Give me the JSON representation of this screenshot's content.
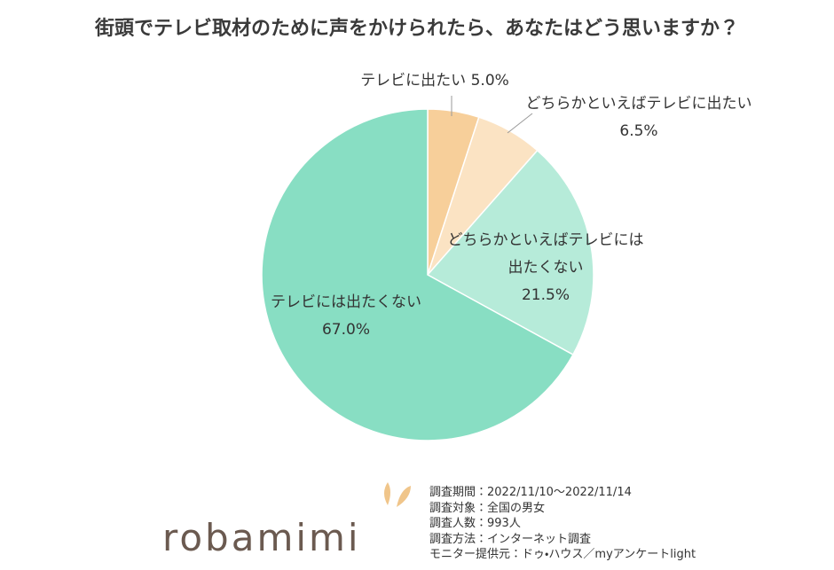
{
  "chart_data": {
    "type": "pie",
    "title": "街頭でテレビ取材のために声をかけられたら、あなたはどう思いますか？",
    "categories": [
      "テレビに出たい",
      "どちらかといえばテレビに出たい",
      "どちらかといえばテレビには出たくない",
      "テレビには出たくない"
    ],
    "values": [
      5.0,
      6.5,
      21.5,
      67.0
    ],
    "value_labels": [
      "5.0%",
      "6.5%",
      "21.5%",
      "67.0%"
    ],
    "colors": [
      "#f7cf9a",
      "#fbe3c3",
      "#b6ebd9",
      "#88dec3"
    ]
  },
  "notes": [
    "調査期間：2022/11/10～2022/11/14",
    "調査対象：全国の男女",
    "調査人数：993人",
    "調査方法：インターネット調査",
    "モニター提供元：ドゥ・ハウス／myアンケートlight"
  ],
  "logo": "robamimi"
}
